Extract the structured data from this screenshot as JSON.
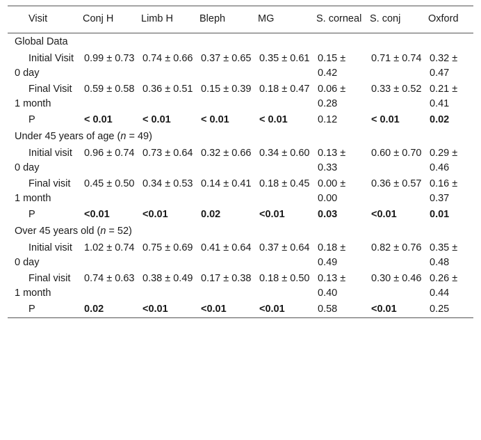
{
  "columns": [
    "Visit",
    "Conj H",
    "Limb H",
    "Bleph",
    "MG",
    "S. corneal",
    "S. conj",
    "Oxford"
  ],
  "sections": [
    {
      "title": "Global Data",
      "n_value": "",
      "rows": [
        {
          "label": "Initial Visit 0 day",
          "values": [
            "0.99 ± 0.73",
            "0.74 ± 0.66",
            "0.37 ± 0.65",
            "0.35 ± 0.61",
            "0.15 ± 0.42",
            "0.71 ± 0.74",
            "0.32 ± 0.47"
          ],
          "bold": [
            false,
            false,
            false,
            false,
            false,
            false,
            false
          ]
        },
        {
          "label": "Final Visit 1 month",
          "values": [
            "0.59 ± 0.58",
            "0.36 ± 0.51",
            "0.15 ± 0.39",
            "0.18 ± 0.47",
            "0.06 ± 0.28",
            "0.33 ± 0.52",
            "0.21 ± 0.41"
          ],
          "bold": [
            false,
            false,
            false,
            false,
            false,
            false,
            false
          ]
        },
        {
          "label": "P",
          "values": [
            "< 0.01",
            "< 0.01",
            "< 0.01",
            "< 0.01",
            "0.12",
            "< 0.01",
            "0.02"
          ],
          "bold": [
            true,
            true,
            true,
            true,
            false,
            true,
            true
          ]
        }
      ]
    },
    {
      "title": "Under 45 years of age (",
      "n_value": "n",
      "title_end": " = 49)",
      "rows": [
        {
          "label": "Initial visit 0 day",
          "values": [
            "0.96 ± 0.74",
            "0.73 ± 0.64",
            "0.32 ± 0.66",
            "0.34 ± 0.60",
            "0.13 ± 0.33",
            "0.60 ± 0.70",
            "0.29 ± 0.46"
          ],
          "bold": [
            false,
            false,
            false,
            false,
            false,
            false,
            false
          ]
        },
        {
          "label": "Final visit 1 month",
          "values": [
            "0.45 ± 0.50",
            "0.34 ± 0.53",
            "0.14 ± 0.41",
            "0.18 ± 0.45",
            "0.00 ± 0.00",
            "0.36 ± 0.57",
            "0.16 ± 0.37"
          ],
          "bold": [
            false,
            false,
            false,
            false,
            false,
            false,
            false
          ]
        },
        {
          "label": "P",
          "values": [
            "<0.01",
            "<0.01",
            "0.02",
            "<0.01",
            "0.03",
            "<0.01",
            "0.01"
          ],
          "bold": [
            true,
            true,
            true,
            true,
            true,
            true,
            true
          ]
        }
      ]
    },
    {
      "title": "Over 45 years old (",
      "n_value": "n",
      "title_end": " = 52)",
      "rows": [
        {
          "label": "Initial visit 0 day",
          "values": [
            "1.02 ± 0.74",
            "0.75 ± 0.69",
            "0.41 ± 0.64",
            "0.37 ± 0.64",
            "0.18 ± 0.49",
            "0.82 ± 0.76",
            "0.35 ± 0.48"
          ],
          "bold": [
            false,
            false,
            false,
            false,
            false,
            false,
            false
          ]
        },
        {
          "label": "Final visit 1 month",
          "values": [
            "0.74 ± 0.63",
            "0.38 ± 0.49",
            "0.17 ± 0.38",
            "0.18 ± 0.50",
            "0.13 ± 0.40",
            "0.30 ± 0.46",
            "0.26 ± 0.44"
          ],
          "bold": [
            false,
            false,
            false,
            false,
            false,
            false,
            false
          ]
        },
        {
          "label": "P",
          "values": [
            "0.02",
            "<0.01",
            "<0.01",
            "<0.01",
            "0.58",
            "<0.01",
            "0.25"
          ],
          "bold": [
            true,
            true,
            true,
            true,
            false,
            true,
            false
          ]
        }
      ]
    }
  ]
}
